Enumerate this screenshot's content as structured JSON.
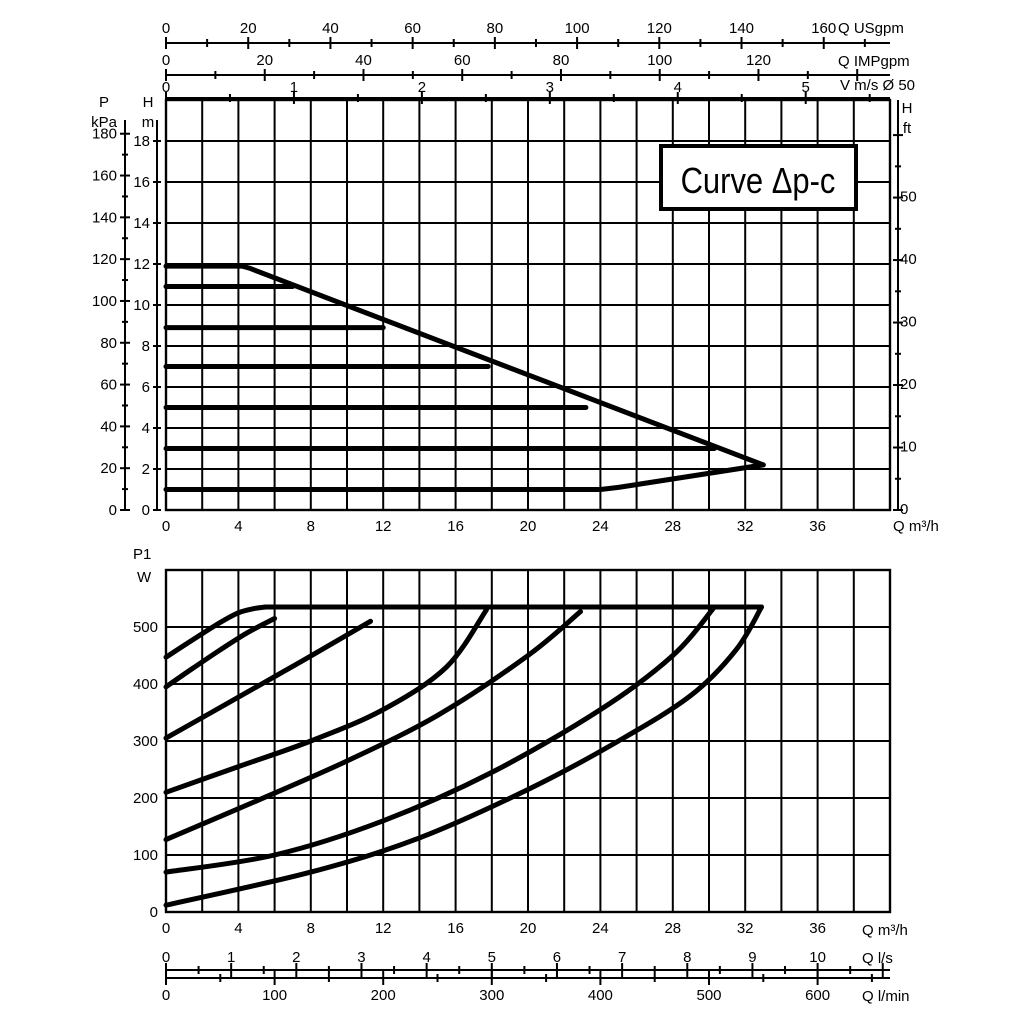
{
  "chart_data": [
    {
      "type": "line",
      "title": "Curve Δp-c",
      "axes": {
        "x": {
          "label": "Q m³/h",
          "range": [
            0,
            40
          ],
          "ticks": [
            "0",
            "4",
            "8",
            "12",
            "16",
            "20",
            "24",
            "28",
            "32",
            "36"
          ]
        },
        "y_left_kpa": {
          "label_line1": "P",
          "label_line2": "kPa",
          "range": [
            0,
            200
          ],
          "ticks": [
            "0",
            "20",
            "40",
            "60",
            "80",
            "100",
            "120",
            "140",
            "160",
            "180"
          ]
        },
        "y_left_m": {
          "label_line1": "H",
          "label_line2": "m",
          "range": [
            0,
            20
          ],
          "ticks": [
            "0",
            "2",
            "4",
            "6",
            "8",
            "10",
            "12",
            "14",
            "16",
            "18"
          ]
        },
        "y_right_ft": {
          "label_line1": "H",
          "label_line2": "ft",
          "range": [
            0,
            65.6
          ],
          "ticks": [
            "0",
            "10",
            "20",
            "30",
            "40",
            "50"
          ]
        },
        "top_usgpm": {
          "label": "Q USgpm",
          "ticks": [
            "0",
            "20",
            "40",
            "60",
            "80",
            "100",
            "120",
            "140",
            "160"
          ]
        },
        "top_impgpm": {
          "label": "Q IMPgpm",
          "ticks": [
            "0",
            "20",
            "40",
            "60",
            "80",
            "100",
            "120"
          ]
        },
        "top_velocity": {
          "label": "V m/s Ø 50",
          "ticks": [
            "0",
            "1",
            "2",
            "3",
            "4",
            "5"
          ]
        }
      },
      "grid": true,
      "series": [
        {
          "x": [
            0,
            4.2,
            4.6,
            33.0
          ],
          "y": [
            11.9,
            11.9,
            11.8,
            2.2
          ]
        },
        {
          "x": [
            0,
            7.0
          ],
          "y": [
            10.9,
            10.9
          ]
        },
        {
          "x": [
            0,
            12.0
          ],
          "y": [
            8.9,
            8.9
          ]
        },
        {
          "x": [
            0,
            17.8
          ],
          "y": [
            7.0,
            7.0
          ]
        },
        {
          "x": [
            0,
            23.2
          ],
          "y": [
            5.0,
            5.0
          ]
        },
        {
          "x": [
            0,
            30.3
          ],
          "y": [
            3.0,
            3.0
          ]
        },
        {
          "x": [
            0,
            24.0,
            25.0,
            33.0
          ],
          "y": [
            1.0,
            1.0,
            1.1,
            2.2
          ]
        }
      ]
    },
    {
      "type": "line",
      "axes": {
        "x": {
          "label": "Q m³/h",
          "range": [
            0,
            40
          ],
          "ticks": [
            "0",
            "4",
            "8",
            "12",
            "16",
            "20",
            "24",
            "28",
            "32",
            "36"
          ]
        },
        "y": {
          "label_line1": "P1",
          "label_line2": "W",
          "range": [
            0,
            600
          ],
          "ticks": [
            "0",
            "100",
            "200",
            "300",
            "400",
            "500"
          ]
        },
        "bottom_ls": {
          "label": "Q l/s",
          "ticks": [
            "0",
            "1",
            "2",
            "3",
            "4",
            "5",
            "6",
            "7",
            "8",
            "9",
            "10"
          ]
        },
        "bottom_lmin": {
          "label": "Q l/min",
          "ticks": [
            "0",
            "100",
            "200",
            "300",
            "400",
            "500",
            "600"
          ]
        }
      },
      "grid": true,
      "series": [
        {
          "x": [
            0,
            1.5,
            3.0,
            4.0,
            4.8,
            5.5
          ],
          "y": [
            447,
            478,
            508,
            525,
            532,
            535
          ]
        },
        {
          "x": [
            5.5,
            32.9
          ],
          "y": [
            535,
            535
          ]
        },
        {
          "x": [
            0,
            1.5,
            3.0,
            4.5,
            6.0
          ],
          "y": [
            395,
            428,
            460,
            490,
            515
          ]
        },
        {
          "x": [
            0,
            2.5,
            5.0,
            7.5,
            11.3
          ],
          "y": [
            305,
            350,
            395,
            440,
            510
          ]
        },
        {
          "x": [
            0,
            4.0,
            8.0,
            12.0,
            15.5,
            17.7
          ],
          "y": [
            210,
            255,
            300,
            355,
            430,
            530
          ]
        },
        {
          "x": [
            0,
            5.0,
            10.0,
            15.0,
            20.0,
            22.9
          ],
          "y": [
            127,
            195,
            265,
            345,
            450,
            527
          ]
        },
        {
          "x": [
            0,
            6.0,
            12.0,
            18.0,
            24.0,
            28.0,
            30.3
          ],
          "y": [
            70,
            100,
            160,
            245,
            355,
            450,
            535
          ]
        },
        {
          "x": [
            0,
            8.0,
            14.0,
            20.0,
            25.0,
            29.0,
            31.5,
            32.9
          ],
          "y": [
            12,
            70,
            130,
            215,
            300,
            380,
            460,
            535
          ]
        }
      ]
    }
  ]
}
